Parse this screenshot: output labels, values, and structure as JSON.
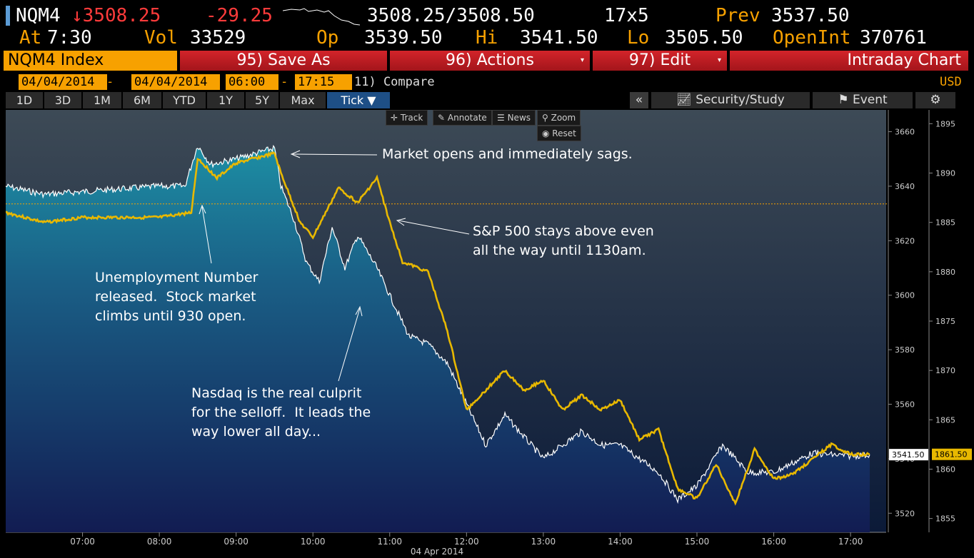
{
  "quote": {
    "ticker": "NQM4",
    "last": "↓3508.25",
    "change": "-29.25",
    "bid_ask": "3508.25/3508.50",
    "size": "17x5",
    "prev_label": "Prev",
    "prev_value": "3537.50",
    "at_label": "At",
    "time": "7:30",
    "vol_label": "Vol",
    "vol_value": "33529",
    "op_label": "Op",
    "op_value": "3539.50",
    "hi_label": "Hi",
    "hi_value": "3541.50",
    "lo_label": "Lo",
    "lo_value": "3505.50",
    "oi_label": "OpenInt",
    "oi_value": "370761"
  },
  "toolbar": {
    "security": "NQM4 Index",
    "save_as": "95) Save As",
    "actions": "96) Actions",
    "edit": "97) Edit",
    "view": "Intraday Chart"
  },
  "daterange": {
    "start_date": "04/04/2014",
    "end_date": "04/04/2014",
    "start_time": "06:00",
    "end_time": "17:15",
    "dash": "-",
    "compare": "11) Compare",
    "currency": "USD"
  },
  "periods": [
    "1D",
    "3D",
    "1M",
    "6M",
    "YTD",
    "1Y",
    "5Y",
    "Max",
    "Tick ▼"
  ],
  "right_tools": {
    "collapse": "«",
    "security_study": "Security/Study",
    "event": "Event",
    "settings": "⚙"
  },
  "chart_tools": {
    "track": "Track",
    "annotate": "Annotate",
    "news": "News",
    "zoom": "Zoom",
    "reset": "Reset"
  },
  "annotations": {
    "market_open": "Market opens and immediately sags.",
    "sp500": "S&P 500 stays above even\nall the way until 1130am.",
    "unemployment": "Unemployment Number\nreleased.  Stock market\nclimbs until 930 open.",
    "nasdaq": "Nasdaq is the real culprit\nfor the selloff.  It leads the\nway lower all day..."
  },
  "colors": {
    "nasdaq": "#ffffff",
    "sp500": "#e8b800",
    "prev_line": "#f7a100",
    "accent_red": "#c41e24",
    "accent_amber": "#f7a100",
    "tab_active": "#1e4f86"
  },
  "chart_data": {
    "type": "line",
    "x_range": [
      "06:00",
      "17:15"
    ],
    "xlabel": "04 Apr 2014",
    "x_ticks": [
      "07:00",
      "08:00",
      "09:00",
      "10:00",
      "11:00",
      "12:00",
      "13:00",
      "14:00",
      "15:00",
      "16:00",
      "17:00"
    ],
    "y_left": {
      "ticks": [
        3520,
        3540,
        3560,
        3580,
        3600,
        3620,
        3640,
        3660
      ],
      "range": [
        3513,
        3668
      ]
    },
    "y_right": {
      "ticks": [
        1855,
        1860,
        1865,
        1870,
        1875,
        1880,
        1885,
        1890,
        1895
      ],
      "range": [
        1853.6,
        1896.4
      ]
    },
    "prev_close_level": 3633.5,
    "series": [
      {
        "name": "NQM4 Index",
        "axis": "left",
        "last_label": "3541.50",
        "points": [
          [
            "06:00",
            3640
          ],
          [
            "06:30",
            3637
          ],
          [
            "07:00",
            3638
          ],
          [
            "07:30",
            3639
          ],
          [
            "08:00",
            3640
          ],
          [
            "08:20",
            3640
          ],
          [
            "08:30",
            3655
          ],
          [
            "08:40",
            3648
          ],
          [
            "09:00",
            3650
          ],
          [
            "09:30",
            3654
          ],
          [
            "09:35",
            3640
          ],
          [
            "09:45",
            3628
          ],
          [
            "09:55",
            3612
          ],
          [
            "10:05",
            3605
          ],
          [
            "10:15",
            3625
          ],
          [
            "10:25",
            3610
          ],
          [
            "10:35",
            3622
          ],
          [
            "10:50",
            3610
          ],
          [
            "11:00",
            3600
          ],
          [
            "11:15",
            3585
          ],
          [
            "11:30",
            3582
          ],
          [
            "11:45",
            3575
          ],
          [
            "12:00",
            3560
          ],
          [
            "12:15",
            3545
          ],
          [
            "12:30",
            3556
          ],
          [
            "12:45",
            3548
          ],
          [
            "13:00",
            3540
          ],
          [
            "13:15",
            3545
          ],
          [
            "13:30",
            3550
          ],
          [
            "13:45",
            3545
          ],
          [
            "14:00",
            3545
          ],
          [
            "14:30",
            3535
          ],
          [
            "14:45",
            3525
          ],
          [
            "15:00",
            3530
          ],
          [
            "15:20",
            3545
          ],
          [
            "15:40",
            3535
          ],
          [
            "16:00",
            3535
          ],
          [
            "16:30",
            3542
          ],
          [
            "17:00",
            3541
          ],
          [
            "17:15",
            3541.5
          ]
        ]
      },
      {
        "name": "S&P 500",
        "axis": "right",
        "last_label": "1861.50",
        "points": [
          [
            "06:00",
            1886
          ],
          [
            "06:30",
            1885
          ],
          [
            "07:00",
            1885.5
          ],
          [
            "07:30",
            1885.5
          ],
          [
            "08:00",
            1885.5
          ],
          [
            "08:25",
            1886
          ],
          [
            "08:30",
            1891.5
          ],
          [
            "08:45",
            1889.5
          ],
          [
            "09:00",
            1891
          ],
          [
            "09:30",
            1892
          ],
          [
            "09:35",
            1890
          ],
          [
            "09:50",
            1885
          ],
          [
            "10:00",
            1883.5
          ],
          [
            "10:10",
            1886
          ],
          [
            "10:20",
            1888.5
          ],
          [
            "10:35",
            1887
          ],
          [
            "10:50",
            1889.5
          ],
          [
            "11:00",
            1885
          ],
          [
            "11:10",
            1881
          ],
          [
            "11:30",
            1880
          ],
          [
            "11:45",
            1874
          ],
          [
            "12:00",
            1866
          ],
          [
            "12:15",
            1868
          ],
          [
            "12:30",
            1870
          ],
          [
            "12:45",
            1868
          ],
          [
            "13:00",
            1869
          ],
          [
            "13:15",
            1866
          ],
          [
            "13:30",
            1867.5
          ],
          [
            "13:45",
            1866
          ],
          [
            "14:00",
            1867
          ],
          [
            "14:15",
            1863
          ],
          [
            "14:30",
            1864
          ],
          [
            "14:45",
            1858
          ],
          [
            "15:00",
            1857
          ],
          [
            "15:15",
            1860.5
          ],
          [
            "15:30",
            1856.5
          ],
          [
            "15:45",
            1862
          ],
          [
            "16:00",
            1859
          ],
          [
            "16:15",
            1859.5
          ],
          [
            "16:30",
            1861
          ],
          [
            "16:45",
            1862.5
          ],
          [
            "17:00",
            1861.5
          ],
          [
            "17:15",
            1861.5
          ]
        ]
      }
    ]
  }
}
